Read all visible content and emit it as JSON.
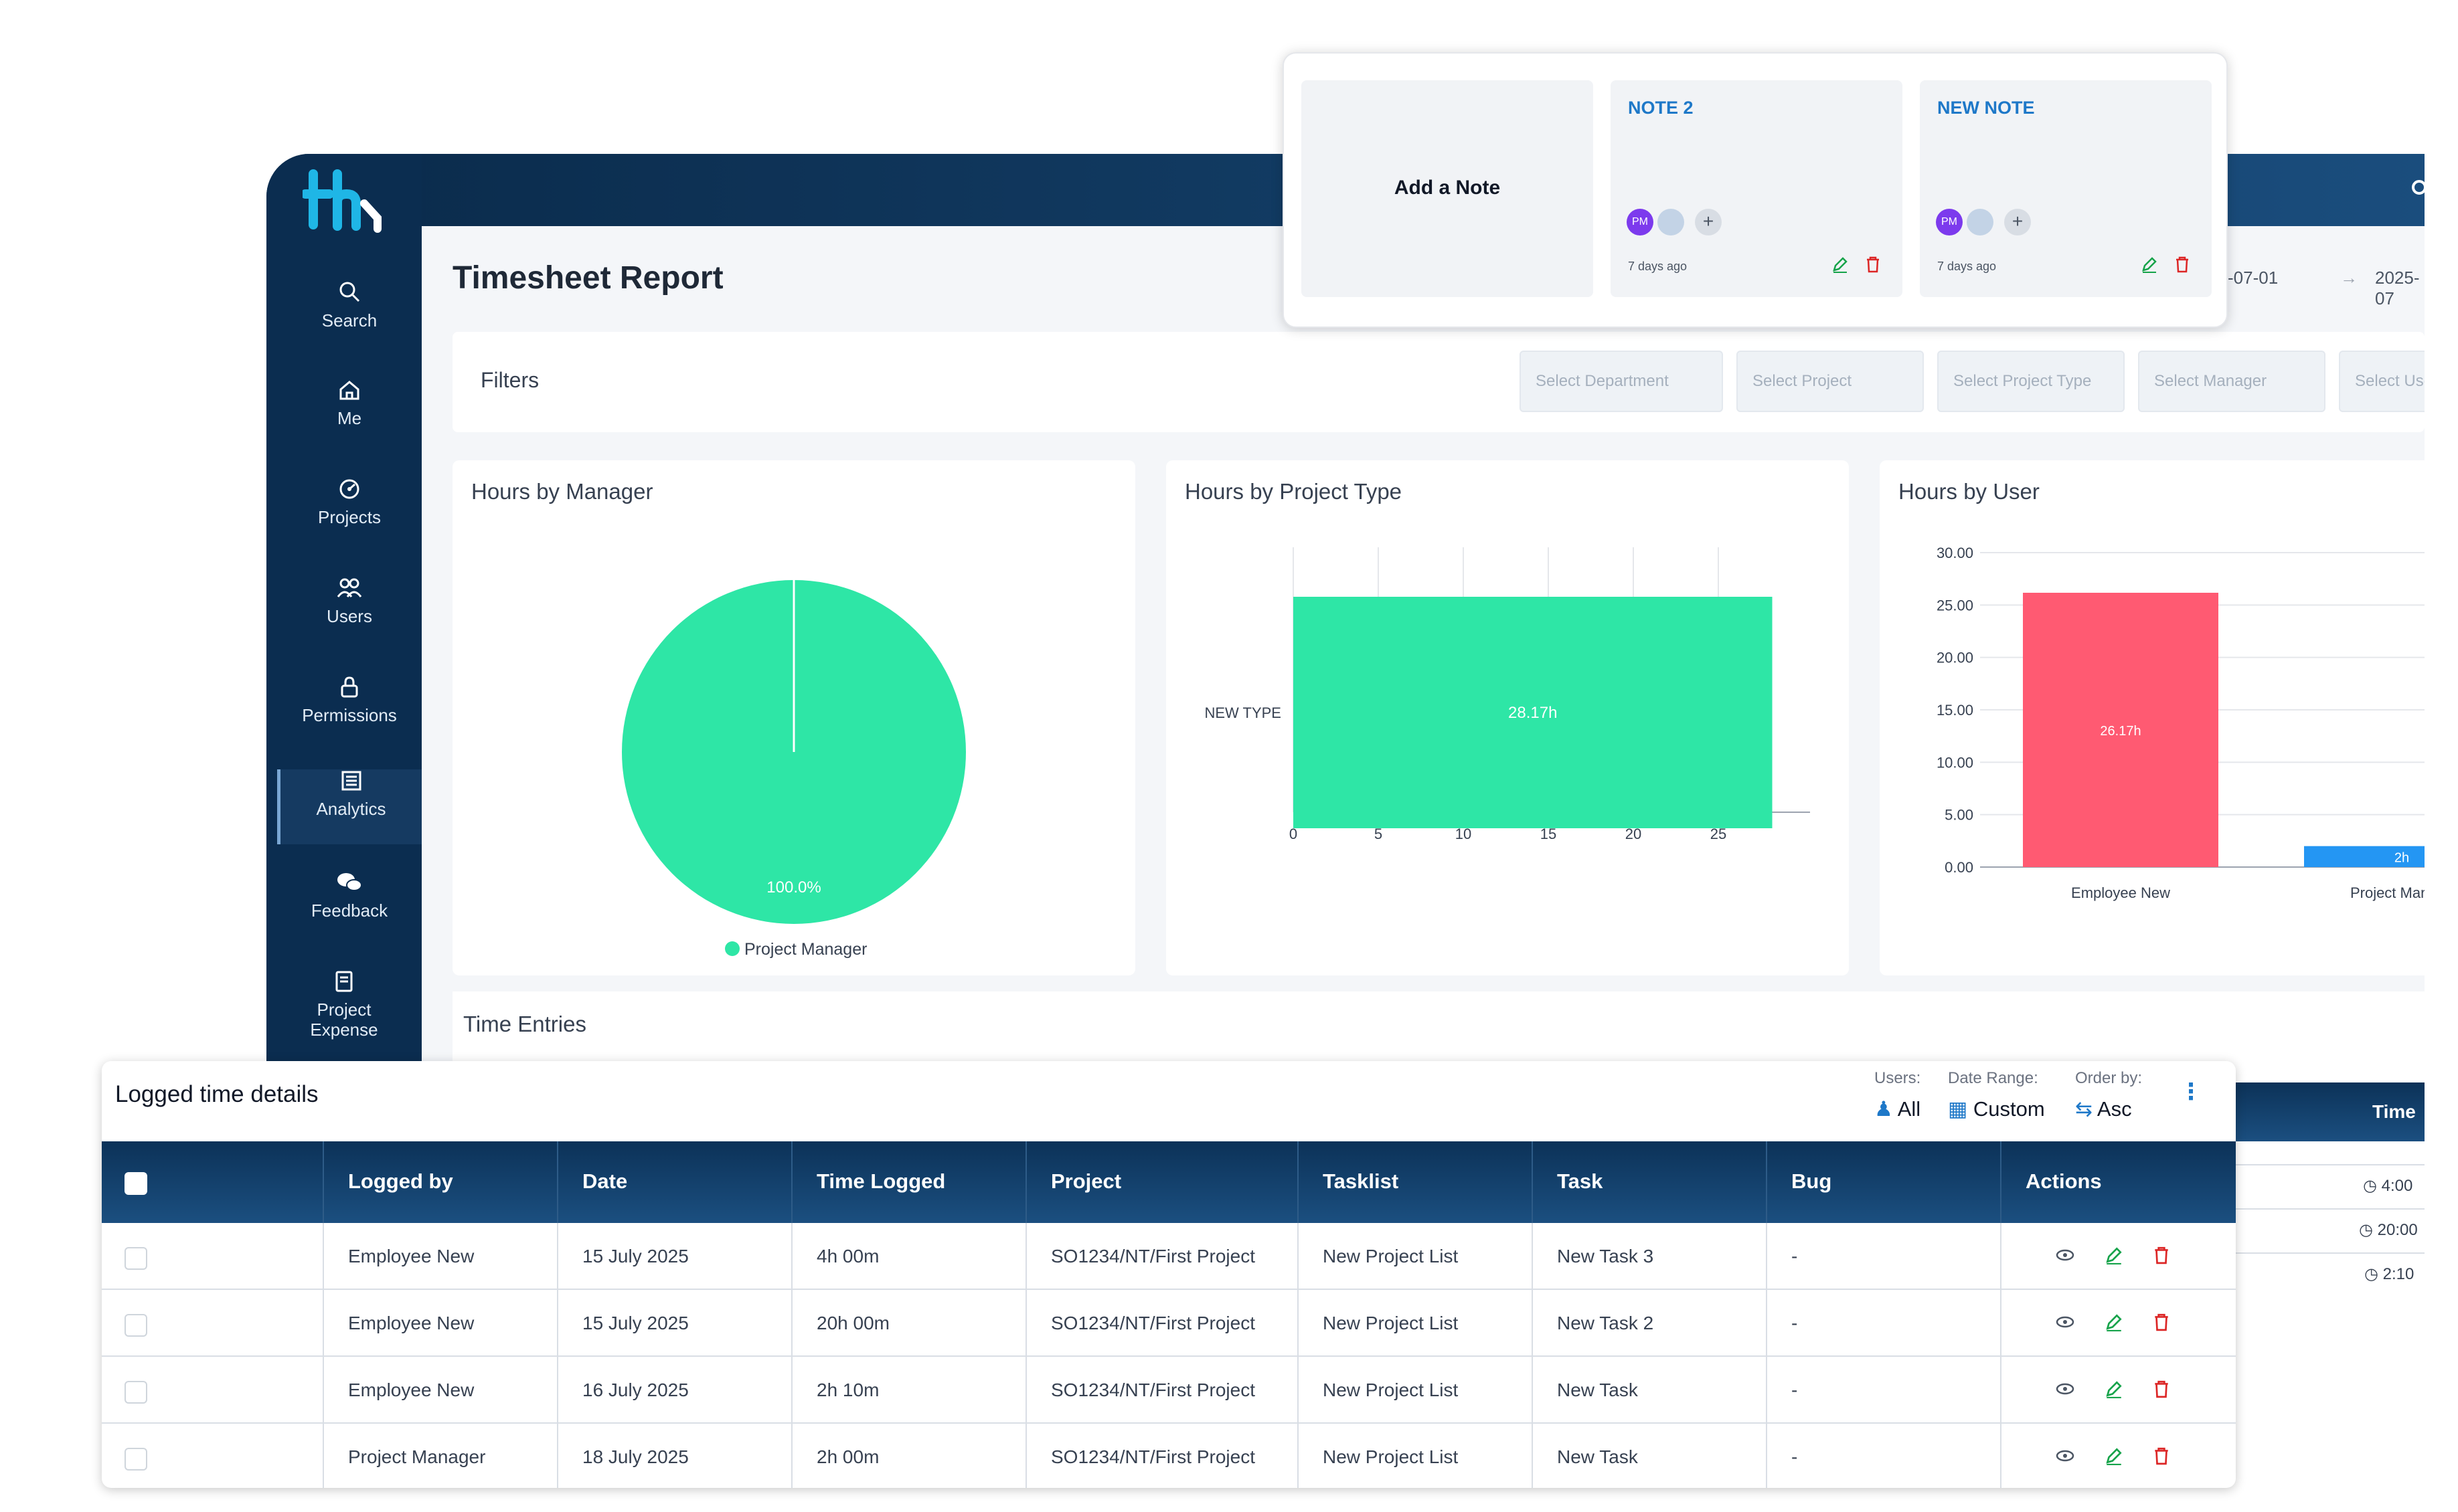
{
  "app": {
    "page_title": "Timesheet Report",
    "date_range": {
      "start": "-07-01",
      "arrow": "→",
      "end": "2025-07"
    },
    "sidebar": [
      {
        "label": "Search",
        "icon": "search-icon"
      },
      {
        "label": "Me",
        "icon": "home-icon"
      },
      {
        "label": "Projects",
        "icon": "projects-icon"
      },
      {
        "label": "Users",
        "icon": "users-icon"
      },
      {
        "label": "Permissions",
        "icon": "lock-icon"
      },
      {
        "label": "Analytics",
        "icon": "analytics-icon",
        "active": true
      },
      {
        "label": "Feedback",
        "icon": "chat-icon"
      },
      {
        "label": "Project Expense",
        "icon": "receipt-icon"
      }
    ],
    "filters": {
      "label": "Filters",
      "placeholders": [
        "Select Department",
        "Select Project",
        "Select Project Type",
        "Select Manager",
        "Select Use"
      ]
    },
    "time_entries_title": "Time Entries",
    "bg_table": {
      "header": "Time",
      "values": [
        "4:00",
        "20:00",
        "2:10"
      ]
    }
  },
  "notes": {
    "add_label": "Add a Note",
    "items": [
      {
        "title": "NOTE 2",
        "avatar": "PM",
        "age": "7 days ago"
      },
      {
        "title": "NEW NOTE",
        "avatar": "PM",
        "age": "7 days ago"
      }
    ]
  },
  "chart_data": [
    {
      "type": "pie",
      "title": "Hours by Manager",
      "slices": [
        {
          "label": "Project Manager",
          "value": 100.0,
          "label_text": "100.0%"
        }
      ],
      "legend": [
        "Project Manager"
      ],
      "colors": [
        "#2ee6a6"
      ]
    },
    {
      "type": "bar",
      "orientation": "horizontal",
      "title": "Hours by Project Type",
      "categories": [
        "NEW TYPE"
      ],
      "values": [
        28.17
      ],
      "data_labels": [
        "28.17h"
      ],
      "xticks": [
        "0",
        "5",
        "10",
        "15",
        "20",
        "25"
      ],
      "xlim": [
        0,
        30
      ],
      "colors": [
        "#2ee6a6"
      ]
    },
    {
      "type": "bar",
      "title": "Hours by User",
      "categories": [
        "Employee New",
        "Project Manage"
      ],
      "values": [
        26.17,
        2
      ],
      "data_labels": [
        "26.17h",
        "2h"
      ],
      "yticks": [
        "30.00",
        "25.00",
        "20.00",
        "15.00",
        "10.00",
        "5.00",
        "0.00"
      ],
      "ylim": [
        0,
        30
      ],
      "colors": [
        "#ff5a72",
        "#2496f3"
      ]
    }
  ],
  "logged": {
    "title": "Logged time details",
    "controls": [
      {
        "label": "Users:",
        "value": "All",
        "icon": "users-icon"
      },
      {
        "label": "Date Range:",
        "value": "Custom",
        "icon": "calendar-icon"
      },
      {
        "label": "Order by:",
        "value": "Asc",
        "icon": "sort-icon"
      }
    ],
    "columns": [
      "Logged by",
      "Date",
      "Time Logged",
      "Project",
      "Tasklist",
      "Task",
      "Bug",
      "Actions"
    ],
    "rows": [
      [
        "Employee New",
        "15 July 2025",
        "4h 00m",
        "SO1234/NT/First Project",
        "New Project List",
        "New Task 3",
        "-"
      ],
      [
        "Employee New",
        "15 July 2025",
        "20h 00m",
        "SO1234/NT/First Project",
        "New Project List",
        "New Task 2",
        "-"
      ],
      [
        "Employee New",
        "16 July 2025",
        "2h 10m",
        "SO1234/NT/First Project",
        "New Project List",
        "New Task",
        "-"
      ],
      [
        "Project Manager",
        "18 July 2025",
        "2h 00m",
        "SO1234/NT/First Project",
        "New Project List",
        "New Task",
        "-"
      ]
    ]
  },
  "colors": {
    "accent": "#1e78c8",
    "nav": "#0b2d50",
    "edit": "#16a34a",
    "delete": "#dc2626",
    "teal": "#2ee6a6"
  }
}
